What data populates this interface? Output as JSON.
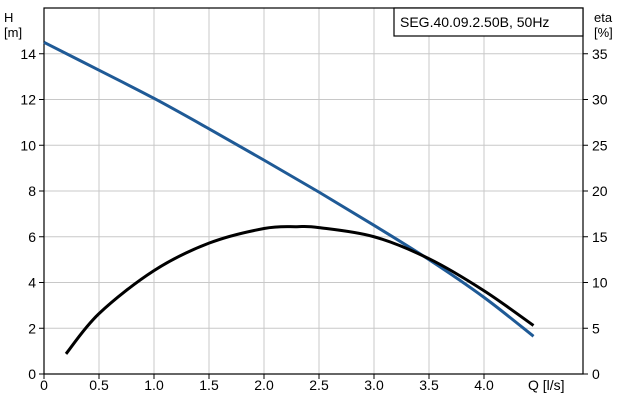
{
  "chart_data": {
    "type": "line",
    "title": "SEG.40.09.2.50B, 50Hz",
    "xlabel": "Q [l/s]",
    "ylabel_left": {
      "name": "H",
      "unit": "[m]"
    },
    "ylabel_right": {
      "name": "eta",
      "unit": "[%]"
    },
    "xlim": [
      0,
      4.9
    ],
    "ylim_left": [
      0,
      16
    ],
    "ylim_right": [
      0,
      40
    ],
    "x_ticks": [
      0,
      0.5,
      1.0,
      1.5,
      2.0,
      2.5,
      3.0,
      3.5,
      4.0
    ],
    "x_tick_labels": [
      "0",
      "0.5",
      "1.0",
      "1.5",
      "2.0",
      "2.5",
      "3.0",
      "3.5",
      "4.0"
    ],
    "y_left_ticks": [
      0,
      2,
      4,
      6,
      8,
      10,
      12,
      14
    ],
    "y_left_tick_labels": [
      "0",
      "2",
      "4",
      "6",
      "8",
      "10",
      "12",
      "14"
    ],
    "y_right_ticks": [
      0,
      5,
      10,
      15,
      20,
      25,
      30,
      35
    ],
    "y_right_tick_labels": [
      "0",
      "5",
      "10",
      "15",
      "20",
      "25",
      "30",
      "35"
    ],
    "grid": true,
    "legend_position": "top-right",
    "series": [
      {
        "axis": "left",
        "color": "#1f5a96",
        "x": [
          0.0,
          0.5,
          1.0,
          1.5,
          2.0,
          2.5,
          3.0,
          3.5,
          4.0,
          4.45
        ],
        "y": [
          14.5,
          13.28,
          12.05,
          10.72,
          9.35,
          7.95,
          6.5,
          5.0,
          3.35,
          1.65
        ]
      },
      {
        "axis": "right",
        "color": "#000000",
        "x": [
          0.2,
          0.5,
          1.0,
          1.5,
          2.0,
          2.3,
          2.5,
          3.0,
          3.5,
          4.0,
          4.45
        ],
        "y": [
          2.2,
          6.6,
          11.3,
          14.3,
          15.9,
          16.1,
          16.0,
          15.0,
          12.6,
          9.1,
          5.3
        ]
      }
    ]
  }
}
